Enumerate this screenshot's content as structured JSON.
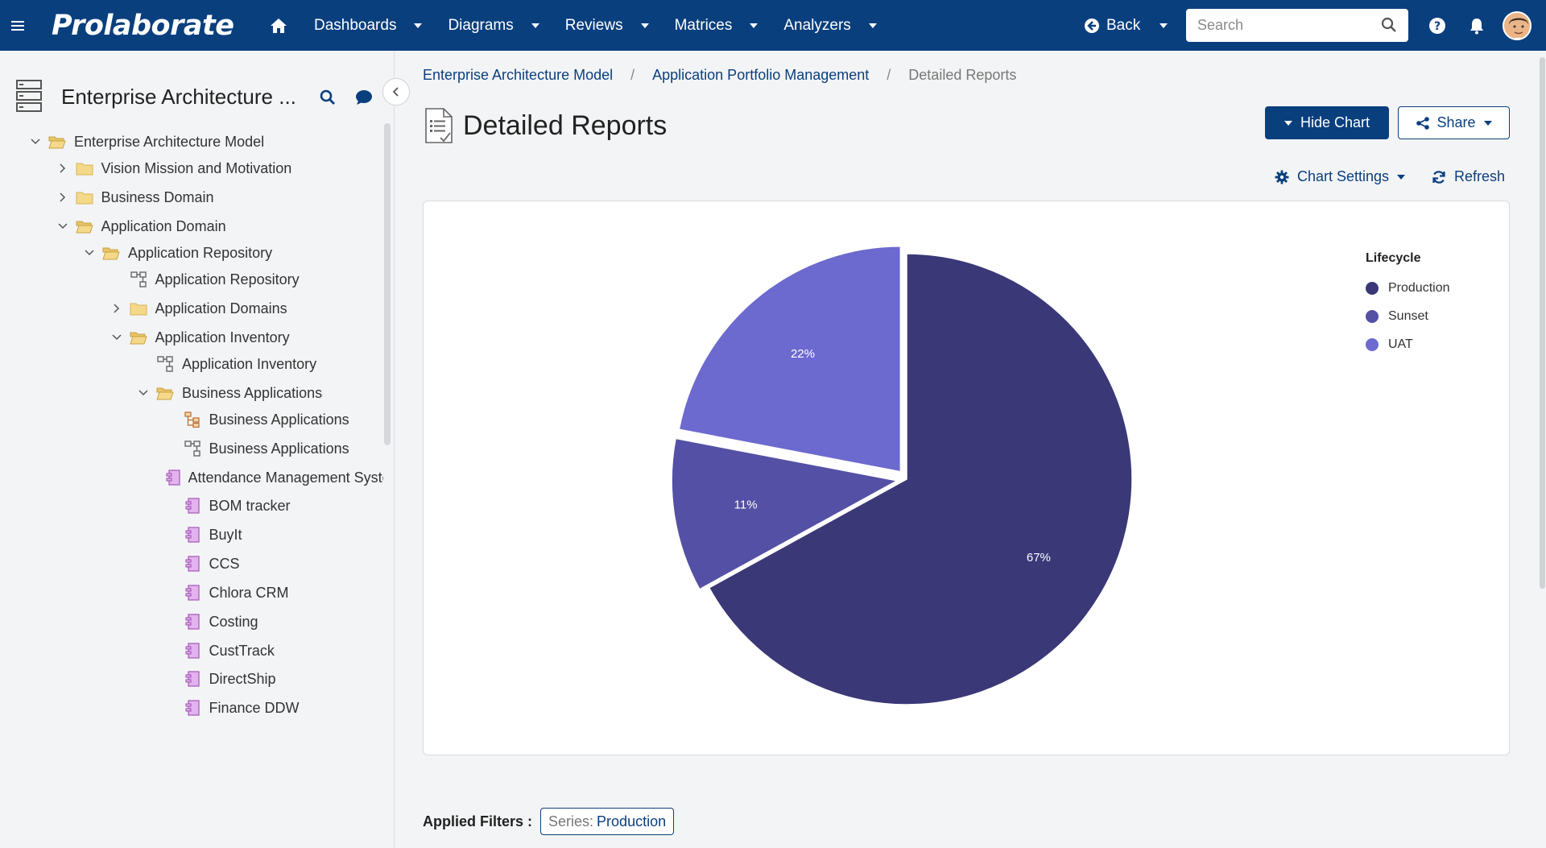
{
  "app": {
    "brand": "Prolaborate"
  },
  "nav": {
    "items": [
      {
        "label": "Dashboards"
      },
      {
        "label": "Diagrams"
      },
      {
        "label": "Reviews"
      },
      {
        "label": "Matrices"
      },
      {
        "label": "Analyzers"
      }
    ],
    "back_label": "Back",
    "search_placeholder": "Search"
  },
  "sidebar": {
    "title": "Enterprise Architecture ...",
    "tree": [
      {
        "label": "Enterprise Architecture Model",
        "level": 0,
        "chevron": "down",
        "icon": "folder-open-icon"
      },
      {
        "label": "Vision Mission and Motivation",
        "level": 1,
        "chevron": "right",
        "icon": "folder-icon"
      },
      {
        "label": "Business Domain",
        "level": 1,
        "chevron": "right",
        "icon": "folder-icon"
      },
      {
        "label": "Application Domain",
        "level": 1,
        "chevron": "down",
        "icon": "folder-open-icon"
      },
      {
        "label": "Application Repository",
        "level": 2,
        "chevron": "down",
        "icon": "folder-open-icon"
      },
      {
        "label": "Application Repository",
        "level": 3,
        "chevron": "none",
        "icon": "diagram-icon"
      },
      {
        "label": "Application Domains",
        "level": 3,
        "chevron": "right",
        "icon": "folder-icon"
      },
      {
        "label": "Application Inventory",
        "level": 3,
        "chevron": "down",
        "icon": "folder-open-icon"
      },
      {
        "label": "Application Inventory",
        "level": 4,
        "chevron": "none",
        "icon": "diagram-icon"
      },
      {
        "label": "Business Applications",
        "level": 4,
        "chevron": "down",
        "icon": "folder-open-icon"
      },
      {
        "label": "Business Applications",
        "level": 5,
        "chevron": "none",
        "icon": "hierarchy-icon"
      },
      {
        "label": "Business Applications",
        "level": 5,
        "chevron": "none",
        "icon": "diagram-icon"
      },
      {
        "label": "Attendance Management System",
        "level": 5,
        "chevron": "none",
        "icon": "component-icon"
      },
      {
        "label": "BOM tracker",
        "level": 5,
        "chevron": "none",
        "icon": "component-icon"
      },
      {
        "label": "BuyIt",
        "level": 5,
        "chevron": "none",
        "icon": "component-icon"
      },
      {
        "label": "CCS",
        "level": 5,
        "chevron": "none",
        "icon": "component-icon"
      },
      {
        "label": "Chlora CRM",
        "level": 5,
        "chevron": "none",
        "icon": "component-icon"
      },
      {
        "label": "Costing",
        "level": 5,
        "chevron": "none",
        "icon": "component-icon"
      },
      {
        "label": "CustTrack",
        "level": 5,
        "chevron": "none",
        "icon": "component-icon"
      },
      {
        "label": "DirectShip",
        "level": 5,
        "chevron": "none",
        "icon": "component-icon"
      },
      {
        "label": "Finance DDW",
        "level": 5,
        "chevron": "none",
        "icon": "component-icon"
      }
    ]
  },
  "breadcrumb": {
    "items": [
      "Enterprise Architecture Model",
      "Application Portfolio Management"
    ],
    "current": "Detailed Reports"
  },
  "page": {
    "title": "Detailed Reports",
    "hide_chart_label": "Hide Chart",
    "share_label": "Share",
    "chart_settings_label": "Chart Settings",
    "refresh_label": "Refresh"
  },
  "chart_data": {
    "type": "pie",
    "title": "",
    "legend_title": "Lifecycle",
    "legend_position": "top-right",
    "categories": [
      "Production",
      "Sunset",
      "UAT"
    ],
    "values": [
      67,
      11,
      22
    ],
    "value_labels": [
      "67%",
      "11%",
      "22%"
    ],
    "colors": [
      "#3a3877",
      "#5450a5",
      "#6c69cf"
    ]
  },
  "filters": {
    "label": "Applied Filters :",
    "chip_key": "Series:",
    "chip_value": "Production"
  },
  "colors": {
    "nav_bg": "#0a3f7e",
    "accent": "#0a3f7e",
    "folder": "#f3d37a",
    "component": "#c77fd8"
  }
}
